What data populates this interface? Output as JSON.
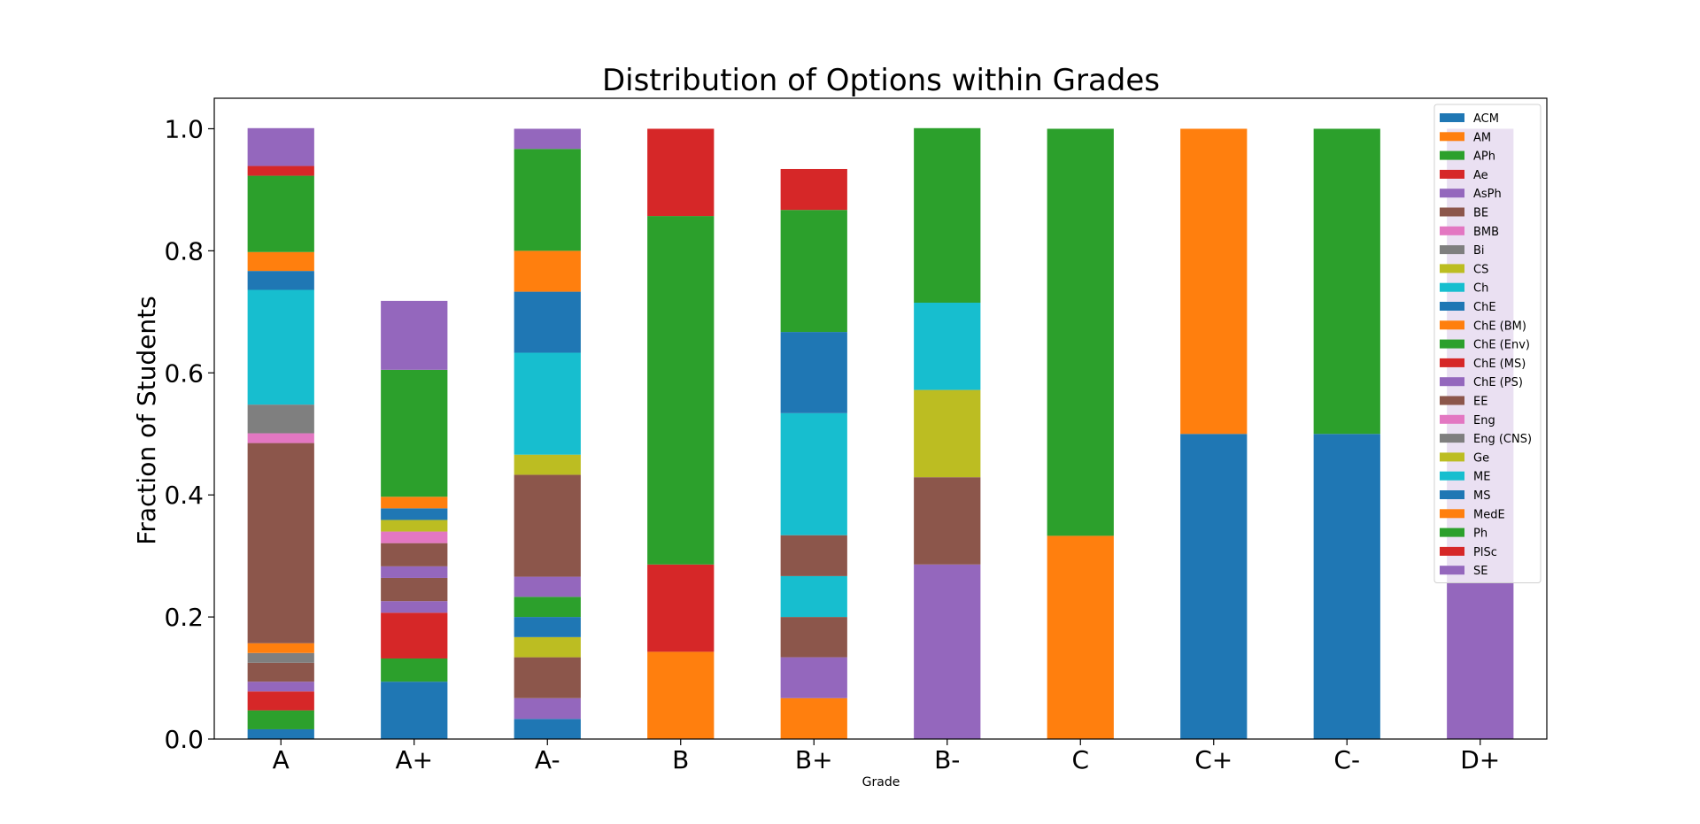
{
  "chart_data": {
    "type": "bar",
    "stacked": true,
    "title": "Distribution of Options within Grades",
    "xlabel": "Grade",
    "ylabel": "Fraction of Students",
    "ylim": [
      0,
      1.05
    ],
    "yticks": [
      "0.0",
      "0.2",
      "0.4",
      "0.6",
      "0.8",
      "1.0"
    ],
    "grid": false,
    "legend_position": "top-right",
    "categories": [
      "A",
      "A+",
      "A-",
      "B",
      "B+",
      "B-",
      "C",
      "C+",
      "C-",
      "D+"
    ],
    "series": [
      {
        "name": "ACM",
        "color": "#1f77b4",
        "values": [
          0.016,
          0.094,
          0.033,
          0,
          0,
          0,
          0,
          0.5,
          0.5,
          0
        ]
      },
      {
        "name": "AM",
        "color": "#ff7f0e",
        "values": [
          0,
          0,
          0,
          0.143,
          0.067,
          0,
          0.333,
          0.5,
          0,
          0
        ]
      },
      {
        "name": "APh",
        "color": "#2ca02c",
        "values": [
          0.031,
          0.038,
          0,
          0,
          0,
          0,
          0,
          0,
          0,
          0
        ]
      },
      {
        "name": "Ae",
        "color": "#d62728",
        "values": [
          0.031,
          0.075,
          0,
          0.143,
          0,
          0,
          0,
          0,
          0,
          0
        ]
      },
      {
        "name": "AsPh",
        "color": "#9467bd",
        "values": [
          0.016,
          0.019,
          0.034,
          0,
          0.067,
          0.286,
          0,
          0,
          0,
          1.0
        ]
      },
      {
        "name": "BE",
        "color": "#8c564b",
        "values": [
          0.031,
          0.038,
          0.067,
          0,
          0.066,
          0,
          0,
          0,
          0,
          0
        ]
      },
      {
        "name": "BMB",
        "color": "#e377c2",
        "values": [
          0,
          0,
          0,
          0,
          0,
          0,
          0,
          0,
          0,
          0
        ]
      },
      {
        "name": "Bi",
        "color": "#7f7f7f",
        "values": [
          0.016,
          0,
          0,
          0,
          0,
          0,
          0,
          0,
          0,
          0
        ]
      },
      {
        "name": "CS",
        "color": "#bcbd22",
        "values": [
          0,
          0,
          0.033,
          0,
          0,
          0,
          0,
          0,
          0,
          0
        ]
      },
      {
        "name": "Ch",
        "color": "#17becf",
        "values": [
          0,
          0,
          0,
          0,
          0.067,
          0,
          0,
          0,
          0,
          0
        ]
      },
      {
        "name": "ChE",
        "color": "#1f77b4",
        "values": [
          0,
          0,
          0.033,
          0,
          0,
          0,
          0,
          0,
          0,
          0
        ]
      },
      {
        "name": "ChE (BM)",
        "color": "#ff7f0e",
        "values": [
          0.016,
          0,
          0,
          0,
          0,
          0,
          0,
          0,
          0,
          0
        ]
      },
      {
        "name": "ChE (Env)",
        "color": "#2ca02c",
        "values": [
          0,
          0,
          0.033,
          0,
          0,
          0,
          0,
          0,
          0,
          0
        ]
      },
      {
        "name": "ChE (MS)",
        "color": "#d62728",
        "values": [
          0,
          0,
          0,
          0,
          0,
          0,
          0,
          0,
          0,
          0
        ]
      },
      {
        "name": "ChE (PS)",
        "color": "#9467bd",
        "values": [
          0,
          0.019,
          0.033,
          0,
          0,
          0,
          0,
          0,
          0,
          0
        ]
      },
      {
        "name": "EE",
        "color": "#8c564b",
        "values": [
          0.328,
          0.038,
          0.167,
          0,
          0.067,
          0.143,
          0,
          0,
          0,
          0
        ]
      },
      {
        "name": "Eng",
        "color": "#e377c2",
        "values": [
          0.016,
          0.019,
          0,
          0,
          0,
          0,
          0,
          0,
          0,
          0
        ]
      },
      {
        "name": "Eng (CNS)",
        "color": "#7f7f7f",
        "values": [
          0.047,
          0,
          0,
          0,
          0,
          0,
          0,
          0,
          0,
          0
        ]
      },
      {
        "name": "Ge",
        "color": "#bcbd22",
        "values": [
          0,
          0.019,
          0.033,
          0,
          0,
          0.143,
          0,
          0,
          0,
          0
        ]
      },
      {
        "name": "ME",
        "color": "#17becf",
        "values": [
          0.188,
          0,
          0.167,
          0,
          0.2,
          0.143,
          0,
          0,
          0,
          0
        ]
      },
      {
        "name": "MS",
        "color": "#1f77b4",
        "values": [
          0.031,
          0.019,
          0.1,
          0,
          0.133,
          0,
          0,
          0,
          0,
          0
        ]
      },
      {
        "name": "MedE",
        "color": "#ff7f0e",
        "values": [
          0.031,
          0.019,
          0.067,
          0,
          0,
          0,
          0,
          0,
          0,
          0
        ]
      },
      {
        "name": "Ph",
        "color": "#2ca02c",
        "values": [
          0.125,
          0.208,
          0.167,
          0.571,
          0.2,
          0.286,
          0.667,
          0,
          0.5,
          0
        ]
      },
      {
        "name": "PlSc",
        "color": "#d62728",
        "values": [
          0.016,
          0,
          0,
          0.143,
          0.067,
          0,
          0,
          0,
          0,
          0
        ]
      },
      {
        "name": "SE",
        "color": "#9467bd",
        "values": [
          0.062,
          0.113,
          0.033,
          0,
          0,
          0,
          0,
          0,
          0,
          0
        ]
      }
    ]
  }
}
